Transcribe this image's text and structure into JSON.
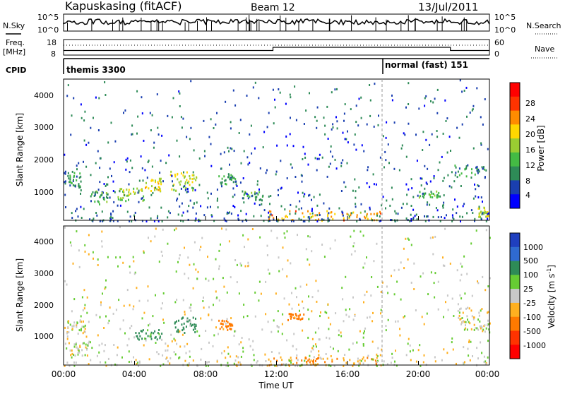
{
  "header": {
    "station": "Kapuskasing (fitACF)",
    "beam": "Beam 12",
    "date": "13/Jul/2011"
  },
  "status_panels": {
    "nsky_label": "N.Sky",
    "nsearch_label": "N.Search",
    "freq_label_line1": "Freq.",
    "freq_label_line2": "[MHz]",
    "nave_label": "Nave",
    "cpid_label": "CPID",
    "nsky_ticks": [
      "10^5",
      "10^0"
    ],
    "nsearch_ticks": [
      "10^5",
      "10^0"
    ],
    "freq_ticks": [
      "18",
      "8"
    ],
    "nave_ticks": [
      "60",
      "0"
    ],
    "cpid_segments": [
      {
        "start": "00:00",
        "end": "18:00",
        "label": "themis 3300"
      },
      {
        "start": "18:00",
        "end": "24:00",
        "label": "normal (fast) 151"
      }
    ],
    "freq_steps": [
      {
        "start": 0,
        "end": 11.8,
        "mhz": 10.5
      },
      {
        "start": 11.8,
        "end": 21.8,
        "mhz": 13
      },
      {
        "start": 21.8,
        "end": 24,
        "mhz": 10.5
      }
    ]
  },
  "axes": {
    "ylabel": "Slant Range [km]",
    "xlabel": "Time UT",
    "yticks": [
      "1000",
      "2000",
      "3000",
      "4000"
    ],
    "xticks": [
      "00:00",
      "04:00",
      "08:00",
      "12:00",
      "16:00",
      "20:00",
      "00:00"
    ]
  },
  "chart_data": [
    {
      "type": "heatmap",
      "name": "power",
      "x_range_hours": [
        0,
        24
      ],
      "y_range_km": [
        180,
        4500
      ],
      "colorbar": {
        "label": "Power [dB]",
        "ticks": [
          "4",
          "8",
          "12",
          "16",
          "20",
          "24",
          "28"
        ],
        "range": [
          0,
          30
        ],
        "colors": [
          "#0000ff",
          "#1a3fb0",
          "#2e8b57",
          "#44bb44",
          "#9acd32",
          "#ffd700",
          "#ff8c00",
          "#ff3300",
          "#ff0000"
        ]
      },
      "features": [
        {
          "time_h": [
            0,
            1
          ],
          "range_km": [
            1200,
            1700
          ],
          "power_db": 8
        },
        {
          "time_h": [
            1.5,
            2.5
          ],
          "range_km": [
            700,
            1100
          ],
          "power_db": 10
        },
        {
          "time_h": [
            3,
            4.5
          ],
          "range_km": [
            800,
            1200
          ],
          "power_db": 14
        },
        {
          "time_h": [
            4.5,
            5.5
          ],
          "range_km": [
            1100,
            1500
          ],
          "power_db": 18
        },
        {
          "time_h": [
            6,
            7.5
          ],
          "range_km": [
            1100,
            1700
          ],
          "power_db": 16
        },
        {
          "time_h": [
            8.7,
            9.7
          ],
          "range_km": [
            1300,
            1600
          ],
          "power_db": 10
        },
        {
          "time_h": [
            10,
            11.2
          ],
          "range_km": [
            800,
            1100
          ],
          "power_db": 10
        },
        {
          "time_h": [
            11.5,
            18
          ],
          "range_km": [
            200,
            500
          ],
          "power_db": 20
        },
        {
          "time_h": [
            20,
            21.2
          ],
          "range_km": [
            900,
            1100
          ],
          "power_db": 12
        },
        {
          "time_h": [
            22,
            23.8
          ],
          "range_km": [
            1500,
            1900
          ],
          "power_db": 8
        },
        {
          "time_h": [
            23.3,
            24
          ],
          "range_km": [
            300,
            600
          ],
          "power_db": 16
        }
      ]
    },
    {
      "type": "heatmap",
      "name": "velocity",
      "x_range_hours": [
        0,
        24
      ],
      "y_range_km": [
        180,
        4500
      ],
      "colorbar": {
        "label": "Velocity [m s-1]",
        "label_main": "Velocity [m s",
        "label_sup": "-1",
        "label_end": "]",
        "ticks": [
          "1000",
          "500",
          "100",
          "25",
          "-25",
          "-100",
          "-500",
          "-1000"
        ],
        "colors": [
          "#1f3fbf",
          "#2f6ad0",
          "#2e8b57",
          "#66cc33",
          "#c8c8c8",
          "#ffb020",
          "#ff7a00",
          "#ff3300",
          "#ff0000"
        ]
      },
      "features": [
        {
          "time_h": [
            0,
            1.2
          ],
          "range_km": [
            1200,
            1600
          ],
          "velocity_ms": 0
        },
        {
          "time_h": [
            0,
            1.5
          ],
          "range_km": [
            500,
            900
          ],
          "velocity_ms": 0
        },
        {
          "time_h": [
            4,
            5.5
          ],
          "range_km": [
            1000,
            1300
          ],
          "velocity_ms": 150
        },
        {
          "time_h": [
            6.2,
            7.5
          ],
          "range_km": [
            1200,
            1700
          ],
          "velocity_ms": 300
        },
        {
          "time_h": [
            8.7,
            9.7
          ],
          "range_km": [
            1300,
            1600
          ],
          "velocity_ms": -150
        },
        {
          "time_h": [
            11.5,
            18
          ],
          "range_km": [
            200,
            450
          ],
          "velocity_ms": -100
        },
        {
          "time_h": [
            12.5,
            13.5
          ],
          "range_km": [
            1600,
            1800
          ],
          "velocity_ms": -200
        },
        {
          "time_h": [
            22.2,
            24
          ],
          "range_km": [
            1300,
            2000
          ],
          "velocity_ms": 0
        }
      ]
    }
  ]
}
